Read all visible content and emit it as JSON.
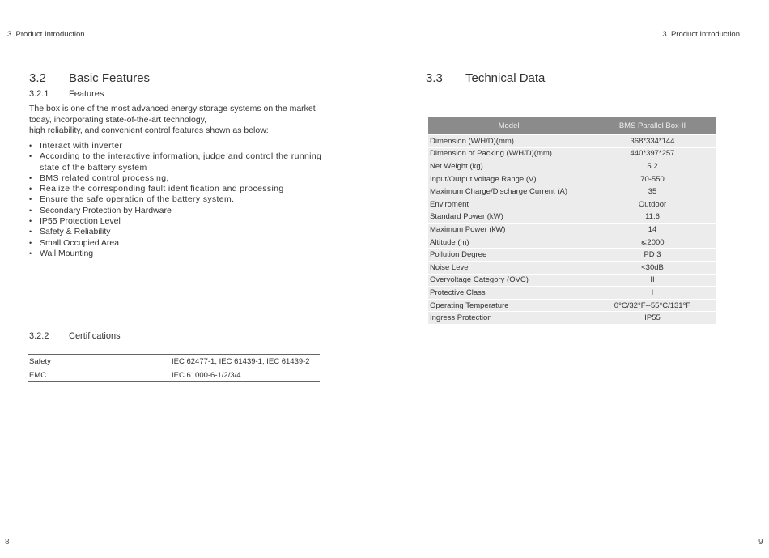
{
  "left_page": {
    "running_header": "3. Product Introduction",
    "section": {
      "number": "3.2",
      "title": "Basic Features"
    },
    "subsection_features": {
      "number": "3.2.1",
      "title": "Features"
    },
    "intro_lines": [
      "The box is one of the most advanced energy storage systems on the market",
      "today, incorporating state-of-the-art technology,",
      "high reliability, and convenient control features shown as below:"
    ],
    "features": [
      "Interact with inverter",
      "According to the interactive information, judge and control the running state of the battery system",
      "BMS related control processing,",
      "Realize the corresponding fault identification and processing",
      "Ensure the safe operation of the battery system.",
      "Secondary Protection by Hardware",
      "IP55 Protection Level",
      "Safety & Reliability",
      "Small Occupied Area",
      "Wall Mounting"
    ],
    "subsection_certifications": {
      "number": "3.2.2",
      "title": "Certifications"
    },
    "certifications": [
      {
        "label": "Safety",
        "value": "IEC 62477-1, IEC 61439-1, IEC 61439-2"
      },
      {
        "label": "EMC",
        "value": "IEC 61000-6-1/2/3/4"
      }
    ],
    "page_number": "8"
  },
  "right_page": {
    "running_header": "3. Product Introduction",
    "section": {
      "number": "3.3",
      "title": "Technical Data"
    },
    "table": {
      "headers": [
        "Model",
        "BMS Parallel Box-II"
      ],
      "rows": [
        [
          "Dimension (W/H/D)(mm)",
          "368*334*144"
        ],
        [
          "Dimension of Packing (W/H/D)(mm)",
          "440*397*257"
        ],
        [
          "Net Weight (kg)",
          "5.2"
        ],
        [
          "Input/Output voltage Range (V)",
          "70-550"
        ],
        [
          "Maximum Charge/Discharge Current (A)",
          "35"
        ],
        [
          "Enviroment",
          "Outdoor"
        ],
        [
          "Standard Power (kW)",
          "11.6"
        ],
        [
          "Maximum Power (kW)",
          "14"
        ],
        [
          "Altitude (m)",
          "⩽2000"
        ],
        [
          "Pollution Degree",
          "PD 3"
        ],
        [
          "Noise Level",
          "<30dB"
        ],
        [
          "Overvoltage Category (OVC)",
          "II"
        ],
        [
          "Protective Class",
          "I"
        ],
        [
          "Operating Temperature",
          "0°C/32°F--55°C/131°F"
        ],
        [
          "Ingress Protection",
          "IP55"
        ]
      ]
    },
    "page_number": "9"
  }
}
